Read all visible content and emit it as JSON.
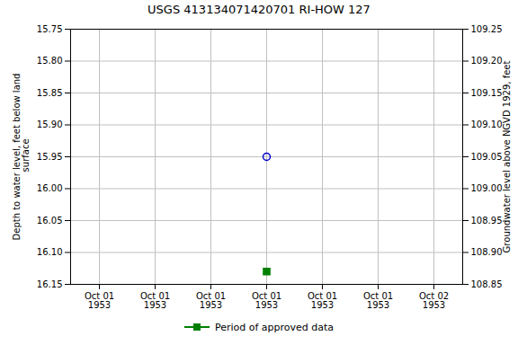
{
  "chart_data": {
    "type": "scatter",
    "title": "USGS 413134071420701 RI-HOW  127",
    "y_label": "Depth to water level, feet below land\n surface",
    "y2_label": "Groundwater level above NGVD 1929, feet",
    "categories": [
      "Oct 01\n1953",
      "Oct 01\n1953",
      "Oct 01\n1953",
      "Oct 01\n1953",
      "Oct 01\n1953",
      "Oct 01\n1953",
      "Oct 02\n1953"
    ],
    "series": [
      {
        "color": "#0000cc",
        "marker": "open_circle",
        "values": [
          null,
          null,
          null,
          15.95,
          null,
          null,
          null
        ]
      },
      {
        "name": "Period of approved data",
        "color": "#008000",
        "marker": "square",
        "values": [
          null,
          null,
          null,
          16.13,
          null,
          null,
          null
        ]
      }
    ],
    "ylim": [
      16.15,
      15.75
    ],
    "yticks": [
      15.75,
      {
        "value": 15.8,
        "label": "15.80"
      },
      15.85,
      {
        "value": 15.9,
        "label": "15.90"
      },
      15.95,
      {
        "value": 16.0,
        "label": "16.00"
      },
      16.05,
      {
        "value": 16.1,
        "label": "16.10"
      },
      16.15
    ],
    "y2lim": [
      108.85,
      109.25
    ],
    "y2ticks": [
      108.85,
      {
        "value": 108.9,
        "label": "108.90"
      },
      108.95,
      {
        "value": 109.0,
        "label": "109.00"
      },
      109.05,
      {
        "value": 109.1,
        "label": "109.10"
      },
      109.15,
      {
        "value": 109.2,
        "label": "109.20"
      },
      109.25
    ],
    "grid": true,
    "legend": "bottom"
  }
}
